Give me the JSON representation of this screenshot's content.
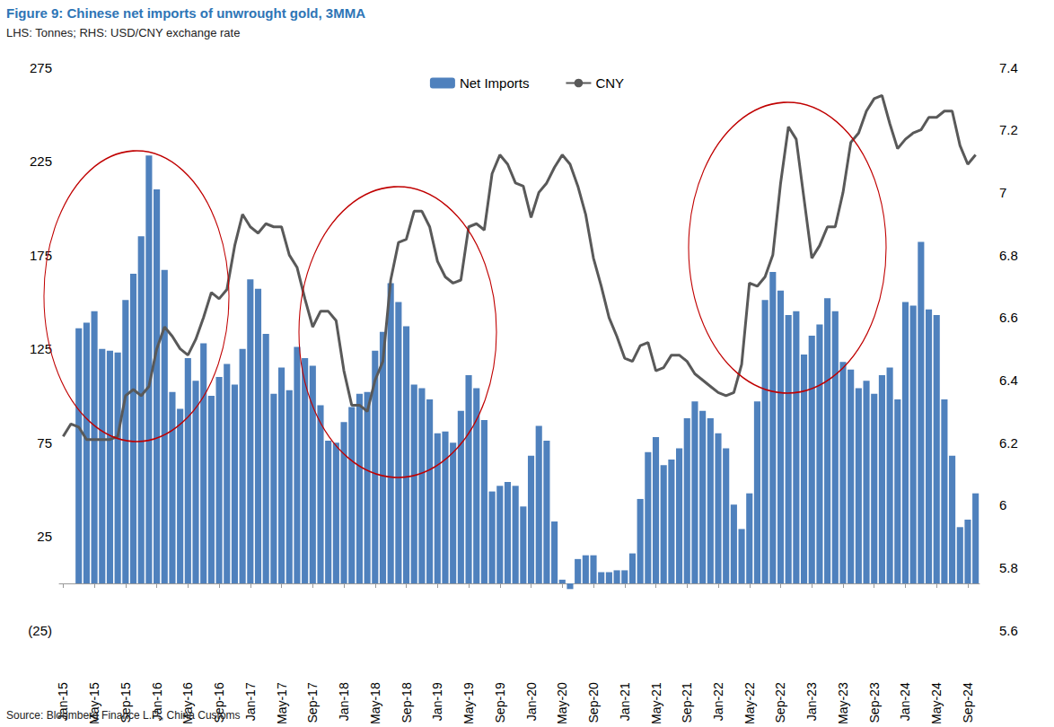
{
  "chart_data": {
    "type": "bar",
    "title": "Figure 9: Chinese net imports of unwrought gold, 3MMA",
    "subtitle": "LHS: Tonnes; RHS: USD/CNY exchange rate",
    "source": "Source: Bloomberg Finance L.P., China Customs",
    "categories": [
      "Jan-15",
      null,
      null,
      null,
      "May-15",
      null,
      null,
      null,
      "Sep-15",
      null,
      null,
      null,
      "Jan-16",
      null,
      null,
      null,
      "May-16",
      null,
      null,
      null,
      "Sep-16",
      null,
      null,
      null,
      "Jan-17",
      null,
      null,
      null,
      "May-17",
      null,
      null,
      null,
      "Sep-17",
      null,
      null,
      null,
      "Jan-18",
      null,
      null,
      null,
      "May-18",
      null,
      null,
      null,
      "Sep-18",
      null,
      null,
      null,
      "Jan-19",
      null,
      null,
      null,
      "May-19",
      null,
      null,
      null,
      "Sep-19",
      null,
      null,
      null,
      "Jan-20",
      null,
      null,
      null,
      "May-20",
      null,
      null,
      null,
      "Sep-20",
      null,
      null,
      null,
      "Jan-21",
      null,
      null,
      null,
      "May-21",
      null,
      null,
      null,
      "Sep-21",
      null,
      null,
      null,
      "Jan-22",
      null,
      null,
      null,
      "May-22",
      null,
      null,
      null,
      "Sep-22",
      null,
      null,
      null,
      "Jan-23",
      null,
      null,
      null,
      "May-23",
      null,
      null,
      null,
      "Sep-23",
      null,
      null,
      null,
      "Jan-24",
      null,
      null,
      null,
      "May-24",
      null,
      null,
      null,
      "Sep-24",
      null
    ],
    "series": [
      {
        "name": "Net Imports",
        "type": "bar",
        "color": "#4f81bd",
        "values": [
          null,
          null,
          136,
          139,
          145,
          125,
          124,
          123,
          151,
          165,
          185,
          228,
          210,
          167,
          102,
          93,
          120,
          108,
          128,
          100,
          110,
          117,
          106,
          125,
          162,
          157,
          133,
          101,
          115,
          103,
          126,
          120,
          116,
          95,
          76,
          75,
          86,
          94,
          101,
          102,
          124,
          134,
          160,
          150,
          137,
          106,
          104,
          98,
          80,
          81,
          75,
          92,
          111,
          104,
          87,
          49,
          52,
          54,
          52,
          41,
          68,
          84,
          76,
          33,
          2,
          -3,
          13,
          15,
          15,
          6,
          6,
          7,
          7,
          16,
          45,
          70,
          78,
          63,
          66,
          72,
          88,
          97,
          92,
          88,
          80,
          72,
          42,
          29,
          48,
          97,
          151,
          166,
          156,
          143,
          145,
          122,
          132,
          138,
          152,
          145,
          118,
          114,
          104,
          108,
          101,
          111,
          115,
          98,
          150,
          148,
          182,
          146,
          143,
          98,
          68,
          30,
          34,
          48
        ]
      },
      {
        "name": "CNY",
        "type": "line",
        "color": "#595959",
        "axis": "y2",
        "marker": "none",
        "values": [
          6.22,
          6.26,
          6.25,
          6.21,
          6.21,
          6.21,
          6.21,
          6.22,
          6.35,
          6.37,
          6.35,
          6.38,
          6.5,
          6.57,
          6.54,
          6.5,
          6.48,
          6.53,
          6.6,
          6.68,
          6.66,
          6.69,
          6.83,
          6.93,
          6.89,
          6.87,
          6.9,
          6.89,
          6.89,
          6.8,
          6.76,
          6.66,
          6.57,
          6.62,
          6.62,
          6.59,
          6.43,
          6.32,
          6.32,
          6.3,
          6.4,
          6.46,
          6.72,
          6.84,
          6.85,
          6.94,
          6.94,
          6.89,
          6.78,
          6.73,
          6.71,
          6.72,
          6.89,
          6.9,
          6.88,
          7.06,
          7.12,
          7.09,
          7.03,
          7.02,
          6.92,
          7.0,
          7.03,
          7.08,
          7.12,
          7.09,
          7.02,
          6.93,
          6.79,
          6.7,
          6.6,
          6.54,
          6.47,
          6.46,
          6.51,
          6.52,
          6.43,
          6.44,
          6.48,
          6.48,
          6.46,
          6.42,
          6.4,
          6.38,
          6.36,
          6.35,
          6.36,
          6.45,
          6.71,
          6.7,
          6.73,
          6.8,
          7.03,
          7.21,
          7.17,
          6.98,
          6.79,
          6.83,
          6.89,
          6.89,
          7.0,
          7.16,
          7.19,
          7.26,
          7.3,
          7.31,
          7.22,
          7.14,
          7.17,
          7.19,
          7.2,
          7.24,
          7.24,
          7.26,
          7.26,
          7.15,
          7.09,
          7.12
        ]
      }
    ],
    "ylim": [
      -25,
      275
    ],
    "yticks": [
      {
        "value": -25,
        "label": "(25)"
      },
      25,
      75,
      125,
      175,
      225,
      275
    ],
    "y2lim": [
      5.6,
      7.4
    ],
    "y2ticks": [
      5.6,
      5.8,
      6,
      6.2,
      6.4,
      6.6,
      6.8,
      7,
      7.2,
      7.4
    ],
    "grid": false,
    "legend": "top"
  }
}
